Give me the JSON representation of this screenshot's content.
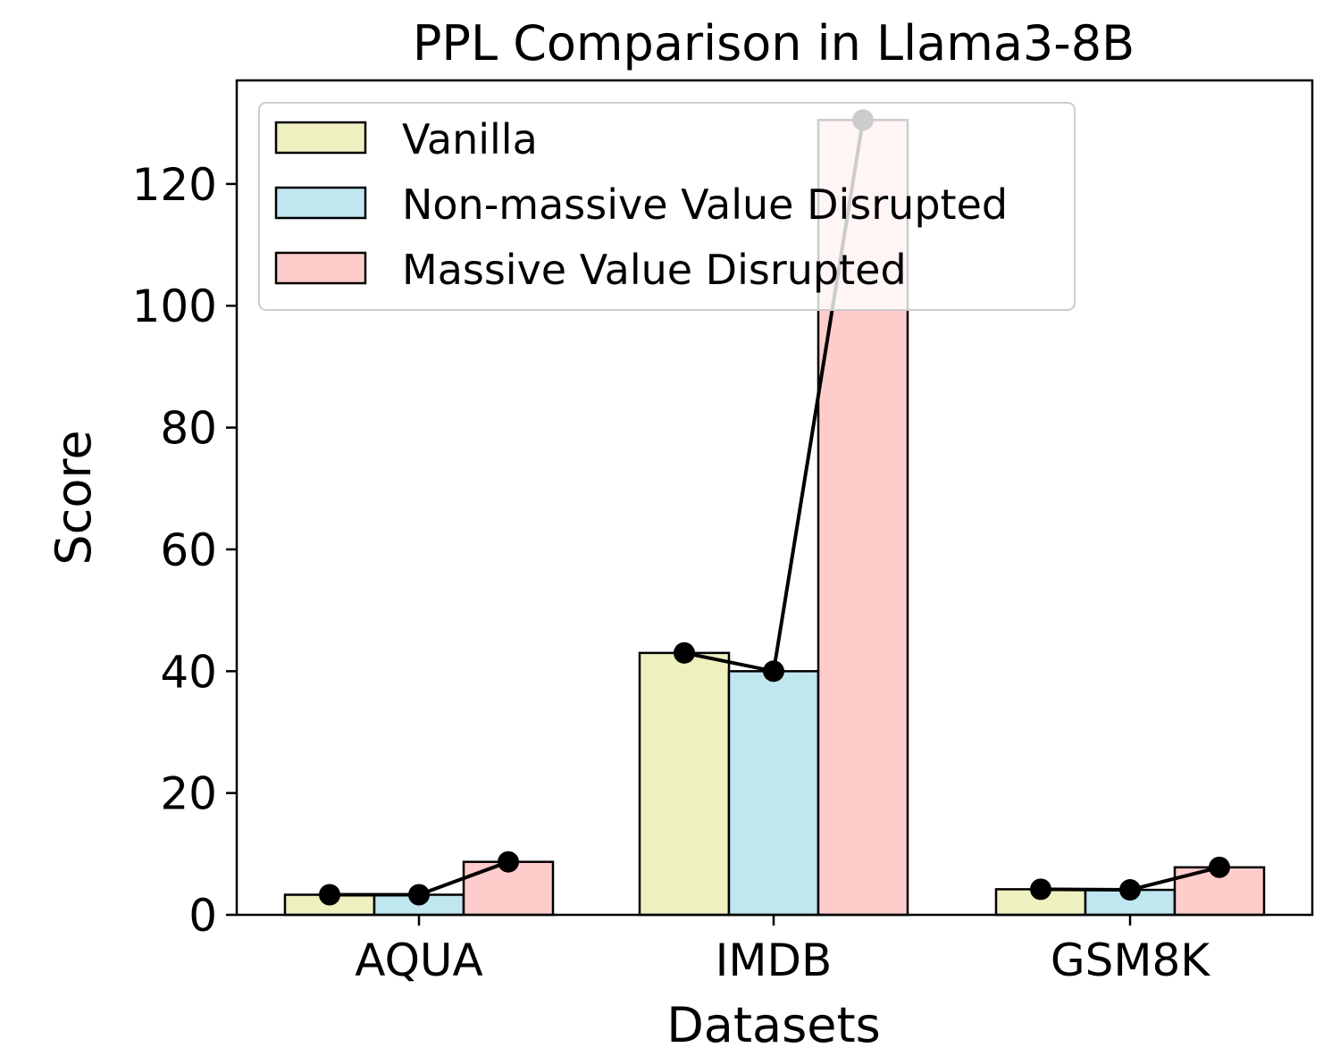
{
  "chart_data": {
    "type": "bar",
    "title": "PPL Comparison in Llama3-8B",
    "xlabel": "Datasets",
    "ylabel": "Score",
    "categories": [
      "AQUA",
      "IMDB",
      "GSM8K"
    ],
    "ylim": [
      0,
      137
    ],
    "yticks": [
      0,
      20,
      40,
      60,
      80,
      100,
      120
    ],
    "grid": false,
    "legend_position": "upper-left",
    "series": [
      {
        "name": "Vanilla",
        "color": "#eef0bf",
        "values": [
          3.3,
          43.0,
          4.2
        ]
      },
      {
        "name": "Non-massive Value Disrupted",
        "color": "#c0e6f0",
        "values": [
          3.3,
          40.0,
          4.1
        ]
      },
      {
        "name": "Massive Value Disrupted",
        "color": "#ffcccc",
        "values": [
          8.7,
          130.5,
          7.8
        ]
      }
    ],
    "line_color": "#000000"
  }
}
